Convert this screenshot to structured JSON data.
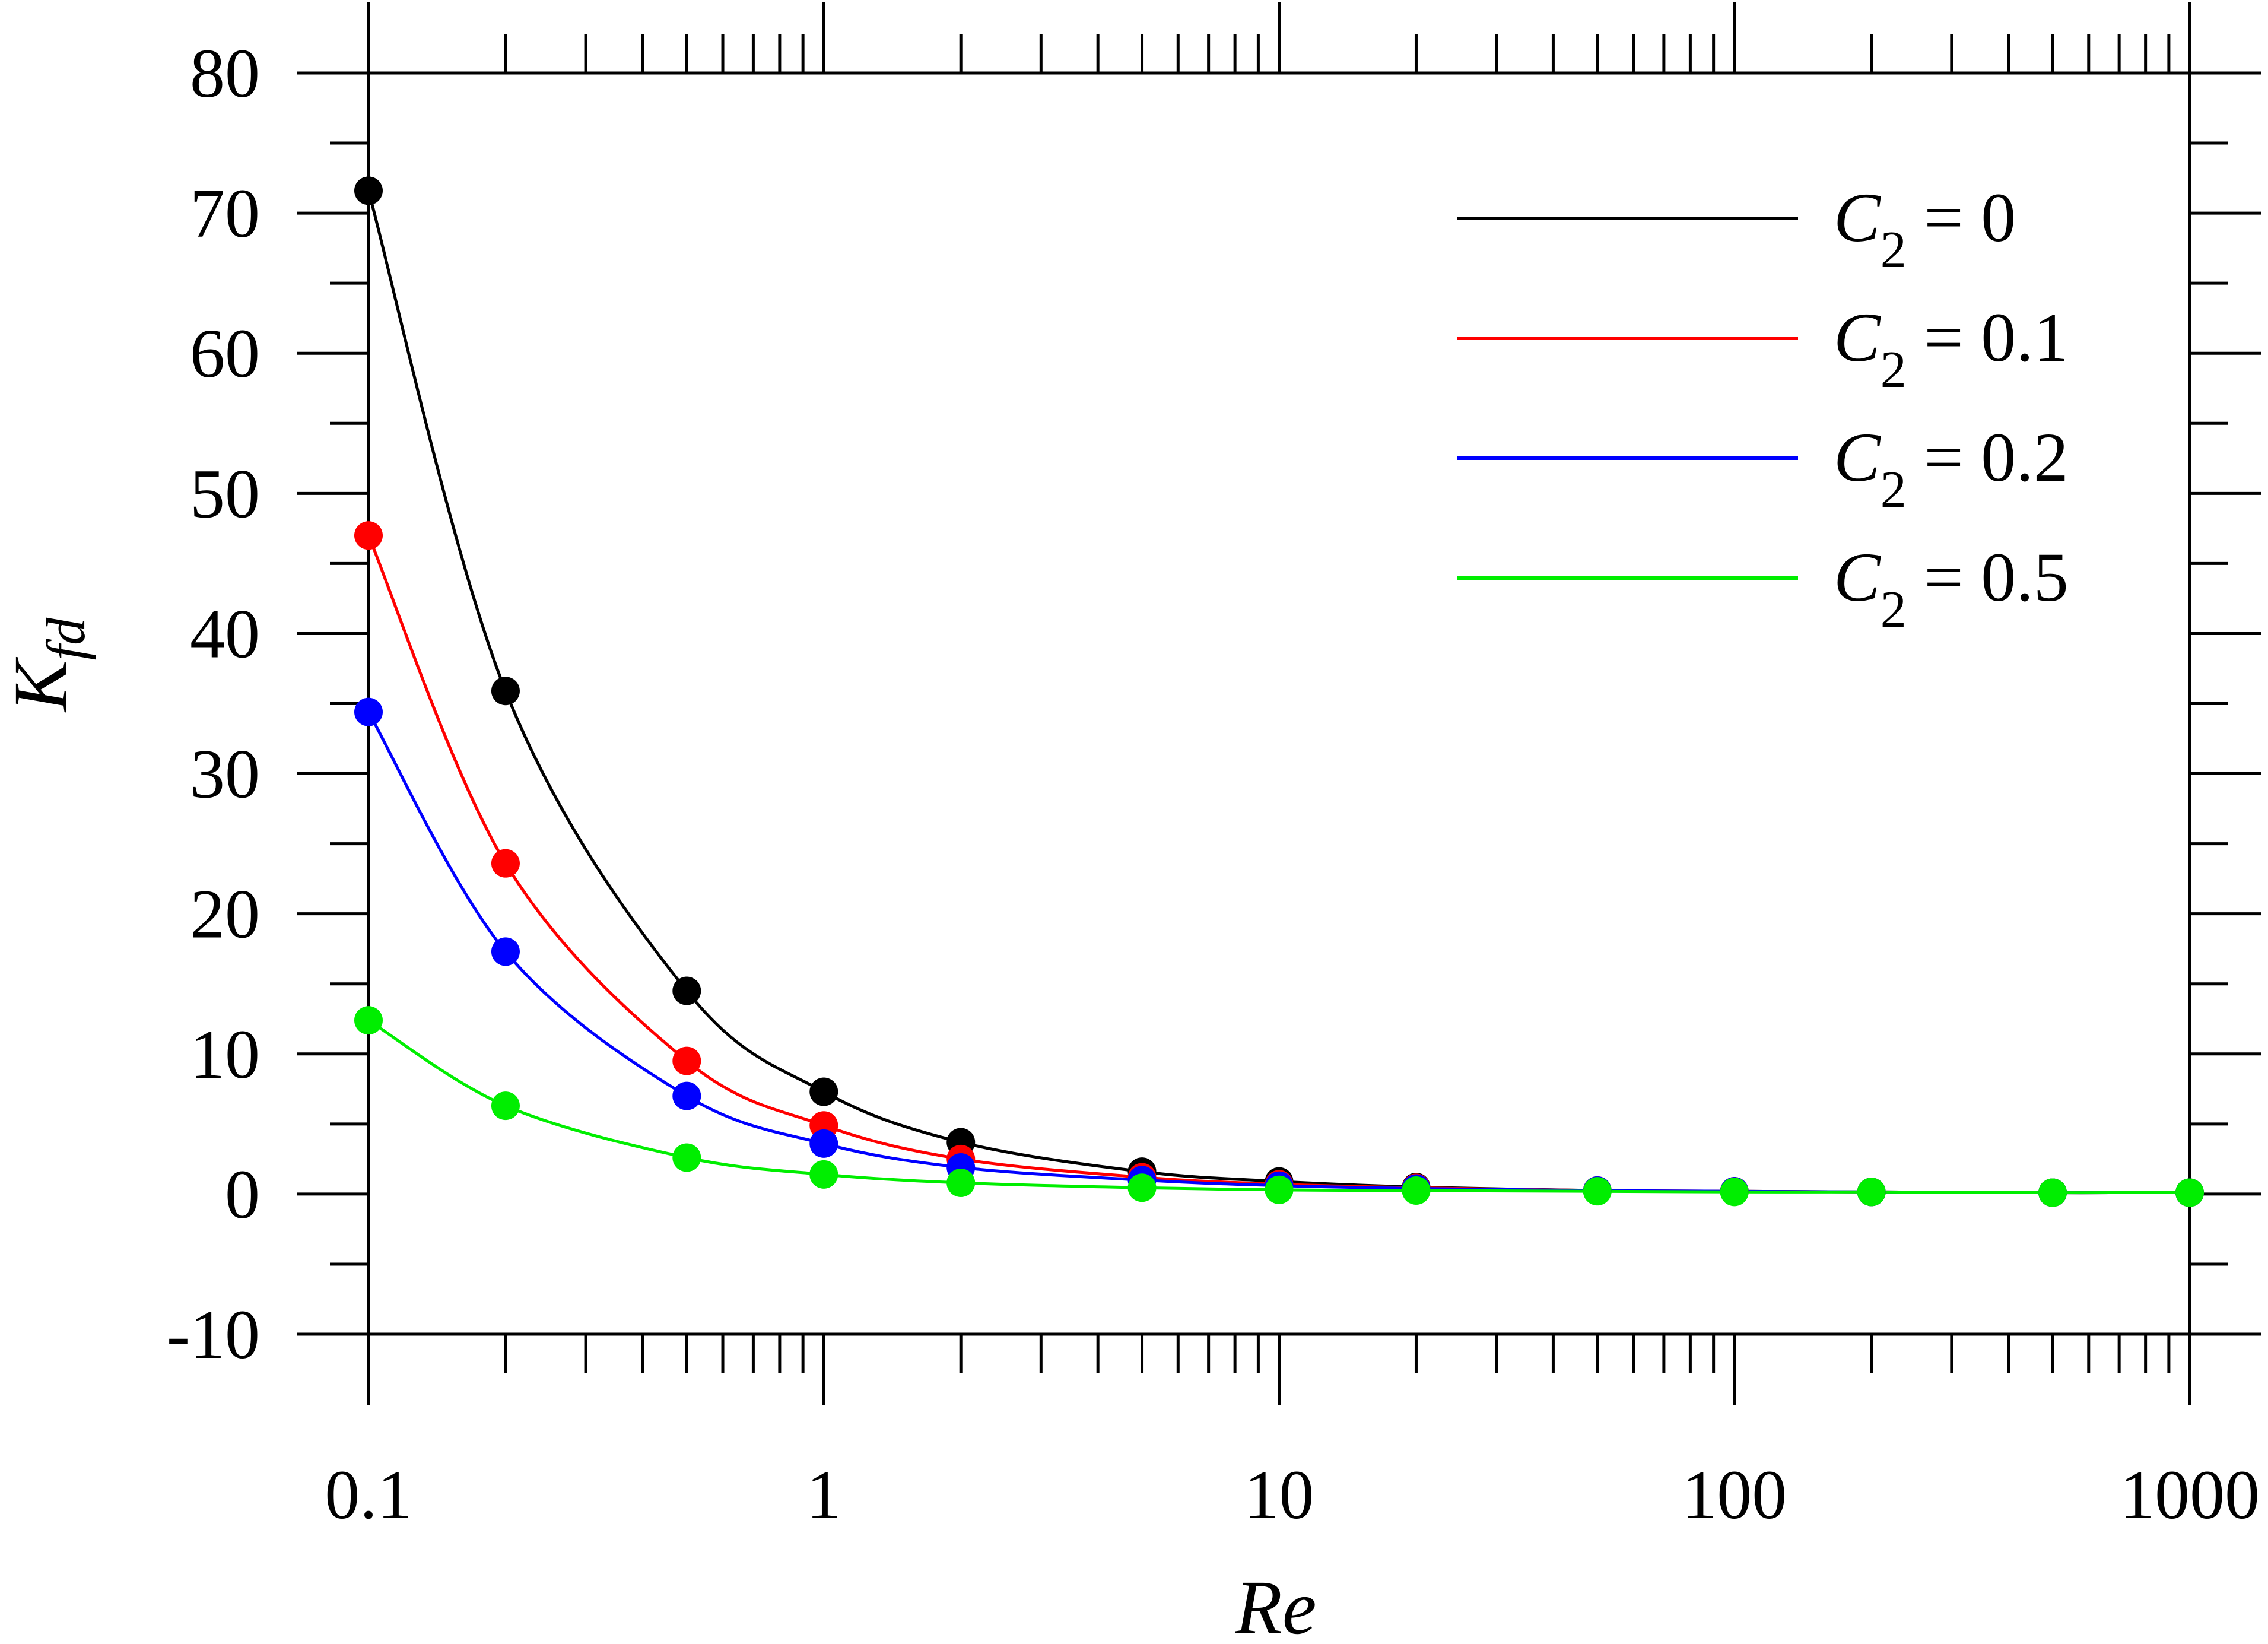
{
  "chart_data": {
    "type": "line",
    "xlabel": "Re",
    "ylabel": {
      "base": "K",
      "sub": "fd"
    },
    "x_scale": "log",
    "xlim": [
      0.1,
      1000
    ],
    "ylim": [
      -10,
      80
    ],
    "x_tick_values": [
      0.1,
      1,
      10,
      100,
      1000
    ],
    "x_tick_labels": [
      "0.1",
      "1",
      "10",
      "100",
      "1000"
    ],
    "y_tick_values": [
      -10,
      0,
      10,
      20,
      30,
      40,
      50,
      60,
      70,
      80
    ],
    "y_tick_labels": [
      "-10",
      "0",
      "10",
      "20",
      "30",
      "40",
      "50",
      "60",
      "70",
      "80"
    ],
    "grid": false,
    "legend_position": "top-right",
    "x": [
      0.1,
      0.2,
      0.5,
      1,
      2,
      5,
      10,
      20,
      50,
      100,
      200,
      500,
      1000
    ],
    "series": [
      {
        "legend_base": "C",
        "legend_sub": "2",
        "legend_value": " = 0",
        "color": "#000000",
        "values": [
          71.6,
          35.9,
          14.5,
          7.3,
          3.7,
          1.6,
          0.9,
          0.5,
          0.25,
          0.2,
          0.15,
          0.1,
          0.1
        ]
      },
      {
        "legend_base": "C",
        "legend_sub": "2",
        "legend_value": " = 0.1",
        "color": "#ff0000",
        "values": [
          47.0,
          23.6,
          9.5,
          4.9,
          2.5,
          1.2,
          0.7,
          0.45,
          0.25,
          0.2,
          0.15,
          0.1,
          0.1
        ]
      },
      {
        "legend_base": "C",
        "legend_sub": "2",
        "legend_value": " = 0.2",
        "color": "#0000ff",
        "values": [
          34.4,
          17.3,
          7.0,
          3.6,
          1.9,
          1.0,
          0.6,
          0.4,
          0.25,
          0.2,
          0.15,
          0.1,
          0.1
        ]
      },
      {
        "legend_base": "C",
        "legend_sub": "2",
        "legend_value": " = 0.5",
        "color": "#00ee00",
        "values": [
          12.4,
          6.3,
          2.6,
          1.4,
          0.8,
          0.45,
          0.3,
          0.25,
          0.2,
          0.15,
          0.15,
          0.1,
          0.1
        ]
      }
    ]
  }
}
